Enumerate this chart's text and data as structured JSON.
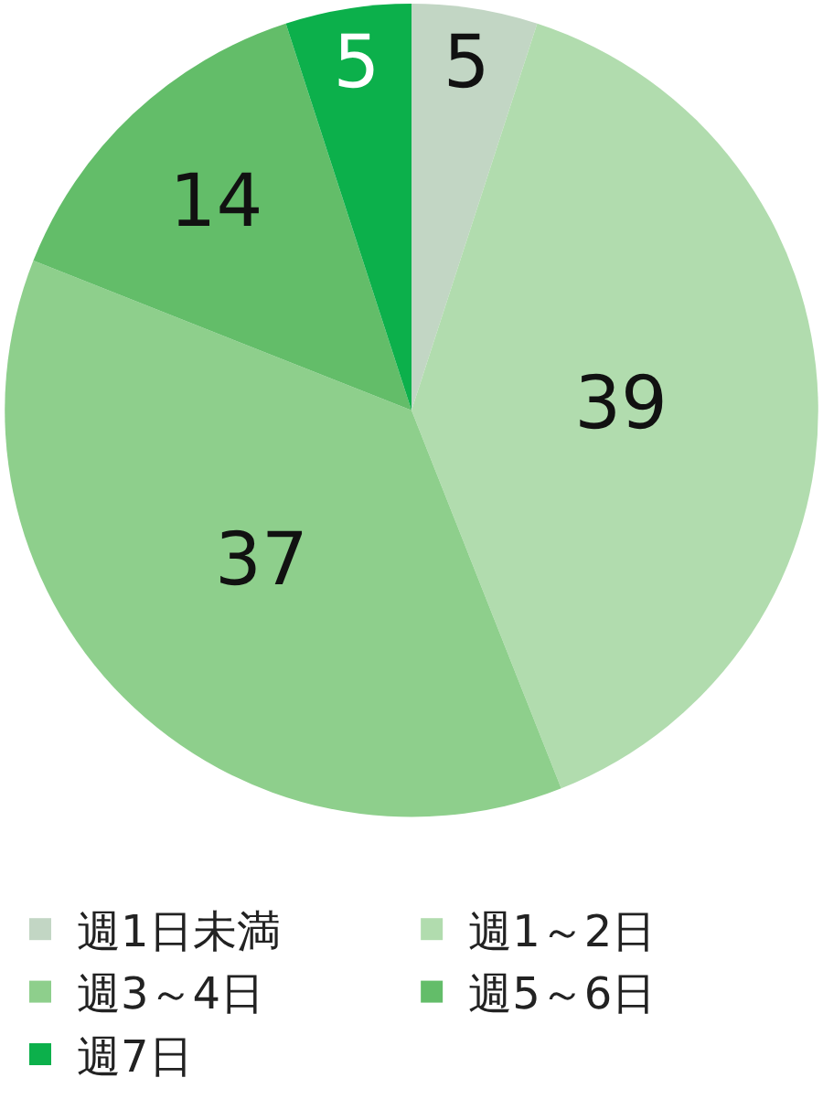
{
  "chart_data": {
    "type": "pie",
    "categories": [
      "週1日未満",
      "週1～2日",
      "週3～4日",
      "週5～6日",
      "週7日"
    ],
    "values": [
      5,
      39,
      37,
      14,
      5
    ],
    "colors": [
      "#c2d6c4",
      "#b1dcae",
      "#8ecf8c",
      "#63bd69",
      "#0cb04b"
    ],
    "data_labels": true,
    "legend": "bottom"
  }
}
